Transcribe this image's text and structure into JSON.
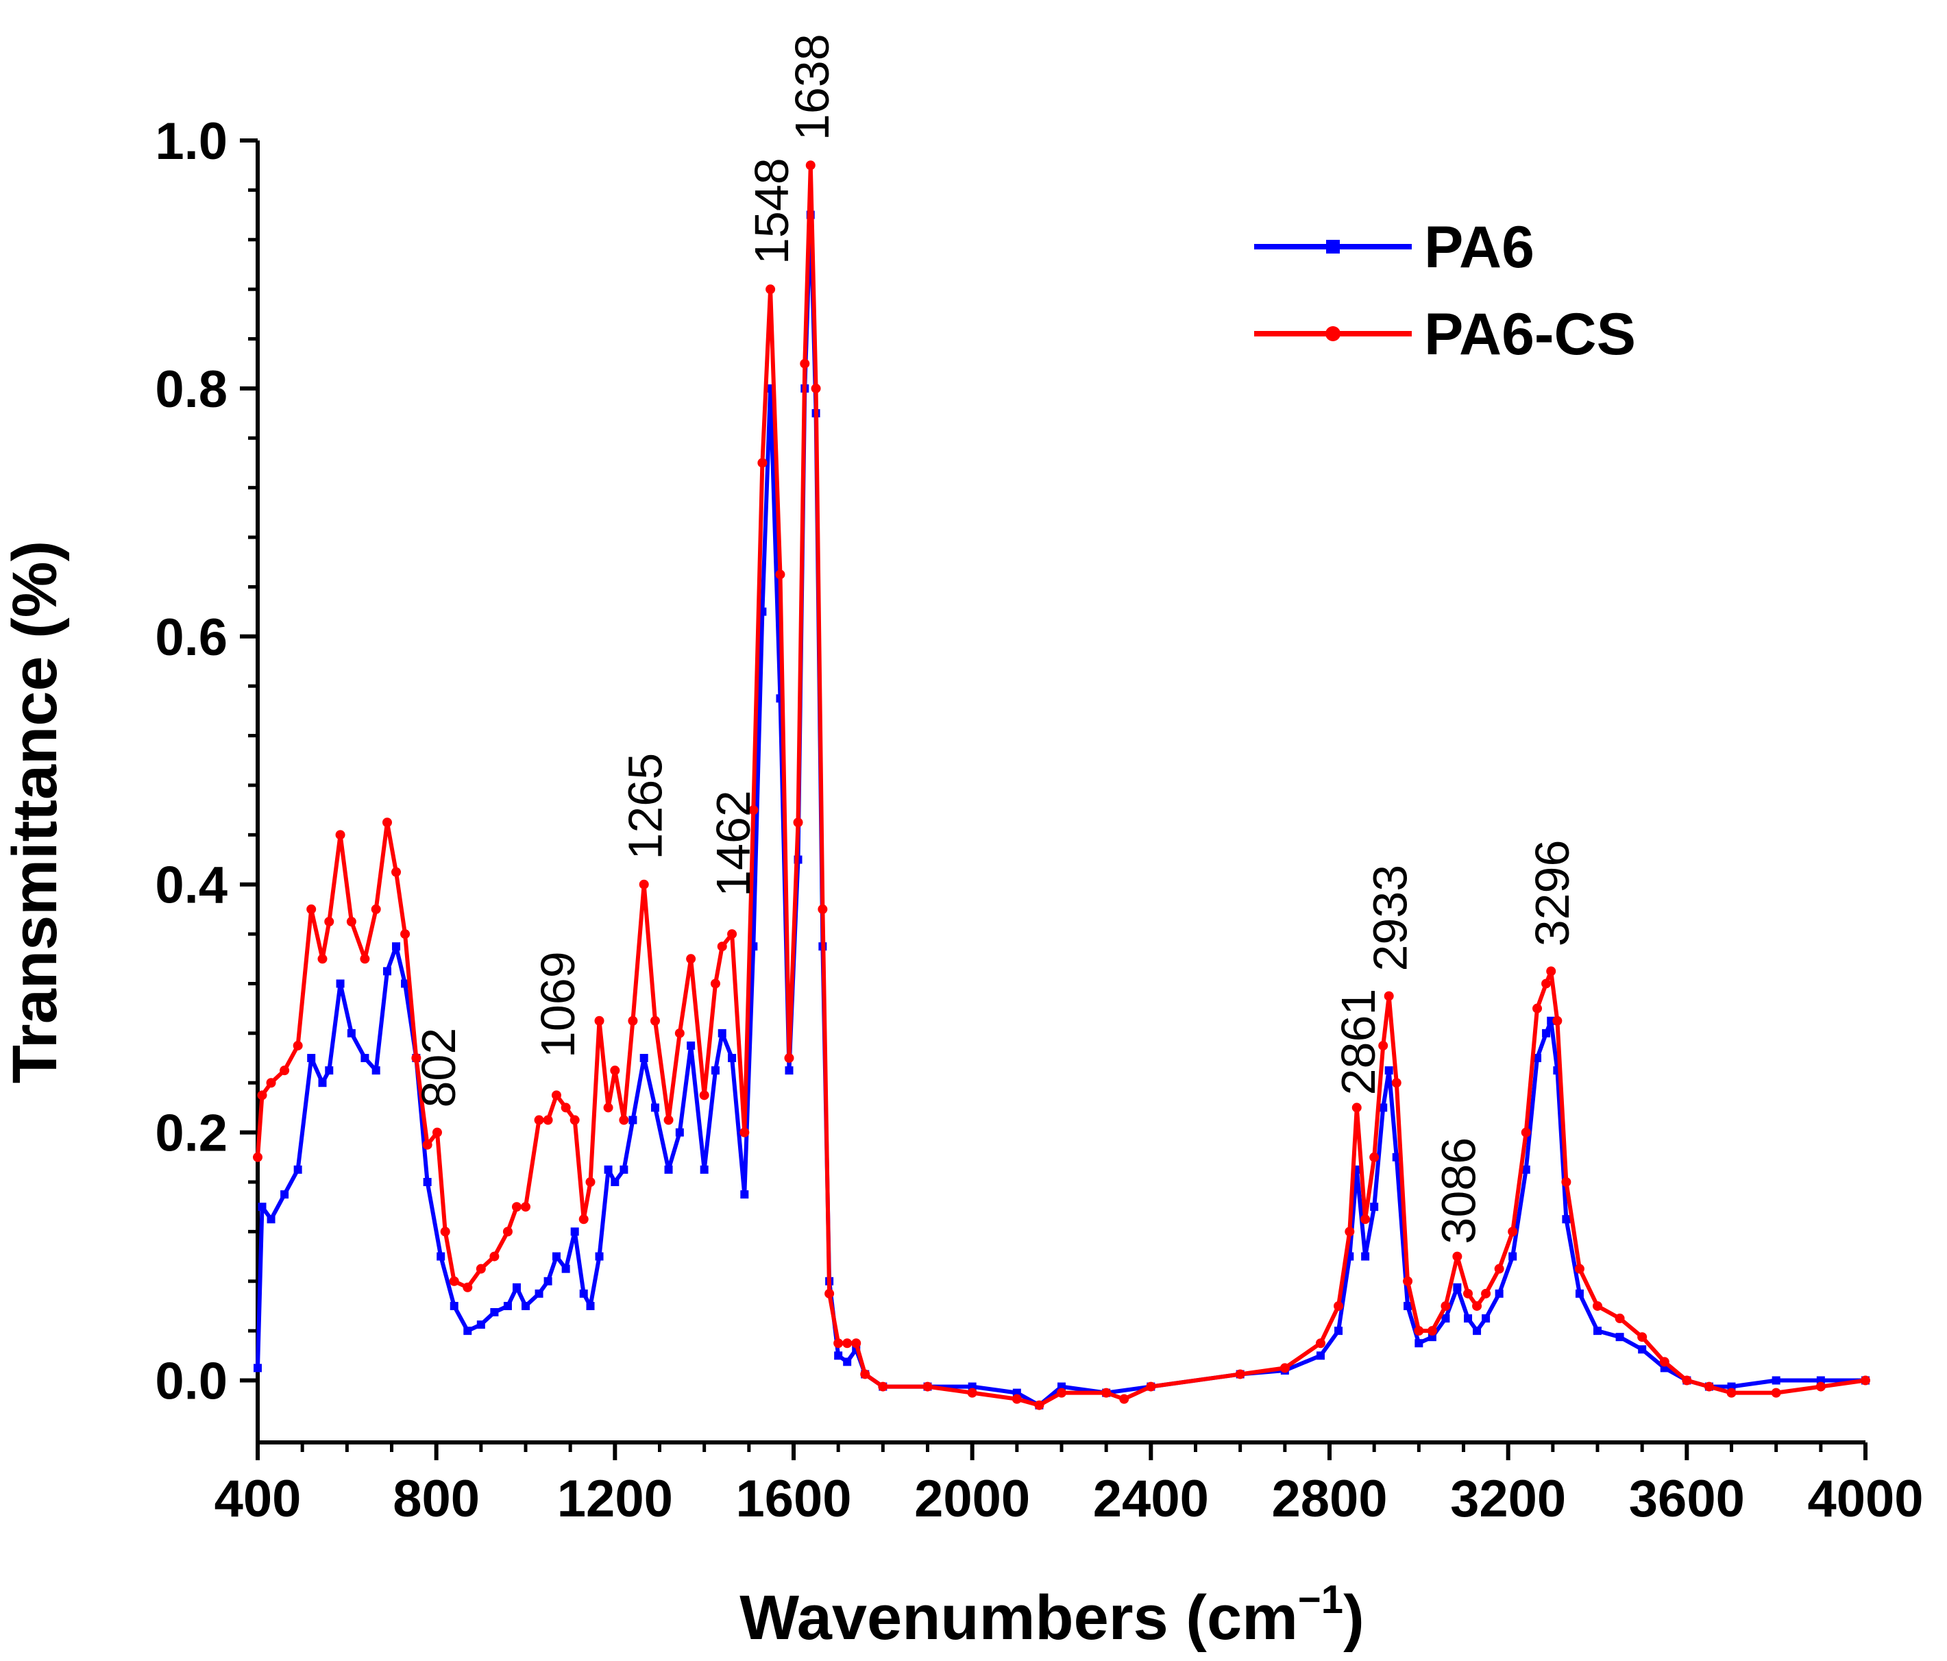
{
  "chart_data": {
    "type": "line",
    "title": "",
    "xlabel": "Wavenumbers (cm",
    "xlabel_sup": "−1",
    "xlabel_end": ")",
    "ylabel": "Transmittance (%)",
    "xlim": [
      400,
      4000
    ],
    "ylim": [
      -0.05,
      1.0
    ],
    "xticks": [
      400,
      800,
      1200,
      1600,
      2000,
      2400,
      2800,
      3200,
      3600,
      4000
    ],
    "yticks": [
      0.0,
      0.2,
      0.4,
      0.6,
      0.8,
      1.0
    ],
    "ytick_labels": [
      "0.0",
      "0.2",
      "0.4",
      "0.6",
      "0.8",
      "1.0"
    ],
    "legend_position": "top-right",
    "series": [
      {
        "name": "PA6",
        "color": "#0000ff",
        "marker": "square",
        "x": [
          400,
          410,
          430,
          460,
          490,
          520,
          545,
          560,
          585,
          610,
          640,
          665,
          690,
          710,
          730,
          755,
          780,
          810,
          840,
          870,
          900,
          930,
          960,
          980,
          1000,
          1030,
          1050,
          1069,
          1090,
          1110,
          1130,
          1145,
          1165,
          1185,
          1200,
          1220,
          1240,
          1265,
          1290,
          1320,
          1345,
          1370,
          1400,
          1425,
          1440,
          1462,
          1490,
          1510,
          1530,
          1548,
          1570,
          1590,
          1610,
          1625,
          1638,
          1650,
          1665,
          1680,
          1700,
          1720,
          1740,
          1760,
          1800,
          1900,
          2000,
          2100,
          2150,
          2200,
          2300,
          2400,
          2600,
          2700,
          2780,
          2820,
          2845,
          2861,
          2880,
          2900,
          2920,
          2933,
          2950,
          2975,
          3000,
          3030,
          3060,
          3086,
          3110,
          3130,
          3150,
          3180,
          3210,
          3240,
          3265,
          3285,
          3296,
          3310,
          3330,
          3360,
          3400,
          3450,
          3500,
          3550,
          3600,
          3650,
          3700,
          3800,
          3900,
          4000
        ],
        "y": [
          0.01,
          0.14,
          0.13,
          0.15,
          0.17,
          0.26,
          0.24,
          0.25,
          0.32,
          0.28,
          0.26,
          0.25,
          0.33,
          0.35,
          0.32,
          0.26,
          0.16,
          0.1,
          0.06,
          0.04,
          0.045,
          0.055,
          0.06,
          0.075,
          0.06,
          0.07,
          0.08,
          0.1,
          0.09,
          0.12,
          0.07,
          0.06,
          0.1,
          0.17,
          0.16,
          0.17,
          0.21,
          0.26,
          0.22,
          0.17,
          0.2,
          0.27,
          0.17,
          0.25,
          0.28,
          0.26,
          0.15,
          0.35,
          0.62,
          0.8,
          0.55,
          0.25,
          0.42,
          0.8,
          0.94,
          0.78,
          0.35,
          0.08,
          0.02,
          0.015,
          0.025,
          0.005,
          -0.005,
          -0.005,
          -0.005,
          -0.01,
          -0.02,
          -0.005,
          -0.01,
          -0.005,
          0.005,
          0.008,
          0.02,
          0.04,
          0.1,
          0.17,
          0.1,
          0.14,
          0.22,
          0.25,
          0.18,
          0.06,
          0.03,
          0.035,
          0.05,
          0.075,
          0.05,
          0.04,
          0.05,
          0.07,
          0.1,
          0.17,
          0.26,
          0.28,
          0.29,
          0.25,
          0.13,
          0.07,
          0.04,
          0.035,
          0.025,
          0.01,
          0.0,
          -0.005,
          -0.005,
          0.0,
          0.0,
          0.0
        ]
      },
      {
        "name": "PA6-CS",
        "color": "#ff0000",
        "marker": "circle",
        "x": [
          400,
          410,
          430,
          460,
          490,
          520,
          545,
          560,
          585,
          610,
          640,
          665,
          690,
          710,
          730,
          755,
          780,
          802,
          820,
          840,
          870,
          900,
          930,
          960,
          980,
          1000,
          1030,
          1050,
          1069,
          1090,
          1110,
          1130,
          1145,
          1165,
          1185,
          1200,
          1220,
          1240,
          1265,
          1290,
          1320,
          1345,
          1370,
          1400,
          1425,
          1440,
          1462,
          1490,
          1510,
          1530,
          1548,
          1570,
          1590,
          1610,
          1625,
          1638,
          1650,
          1665,
          1680,
          1700,
          1720,
          1740,
          1760,
          1800,
          1900,
          2000,
          2100,
          2150,
          2200,
          2300,
          2340,
          2400,
          2600,
          2700,
          2780,
          2820,
          2845,
          2861,
          2880,
          2900,
          2920,
          2933,
          2950,
          2975,
          3000,
          3030,
          3060,
          3086,
          3110,
          3130,
          3150,
          3180,
          3210,
          3240,
          3265,
          3285,
          3296,
          3310,
          3330,
          3360,
          3400,
          3450,
          3500,
          3550,
          3600,
          3650,
          3700,
          3800,
          3900,
          4000
        ],
        "y": [
          0.18,
          0.23,
          0.24,
          0.25,
          0.27,
          0.38,
          0.34,
          0.37,
          0.44,
          0.37,
          0.34,
          0.38,
          0.45,
          0.41,
          0.36,
          0.26,
          0.19,
          0.2,
          0.12,
          0.08,
          0.075,
          0.09,
          0.1,
          0.12,
          0.14,
          0.14,
          0.21,
          0.21,
          0.23,
          0.22,
          0.21,
          0.13,
          0.16,
          0.29,
          0.22,
          0.25,
          0.21,
          0.29,
          0.4,
          0.29,
          0.21,
          0.28,
          0.34,
          0.23,
          0.32,
          0.35,
          0.36,
          0.2,
          0.46,
          0.74,
          0.88,
          0.65,
          0.26,
          0.45,
          0.82,
          0.98,
          0.8,
          0.38,
          0.07,
          0.03,
          0.03,
          0.03,
          0.005,
          -0.005,
          -0.005,
          -0.01,
          -0.015,
          -0.02,
          -0.01,
          -0.01,
          -0.015,
          -0.005,
          0.005,
          0.01,
          0.03,
          0.06,
          0.12,
          0.22,
          0.13,
          0.18,
          0.27,
          0.31,
          0.24,
          0.08,
          0.04,
          0.04,
          0.06,
          0.1,
          0.07,
          0.06,
          0.07,
          0.09,
          0.12,
          0.2,
          0.3,
          0.32,
          0.33,
          0.29,
          0.16,
          0.09,
          0.06,
          0.05,
          0.035,
          0.015,
          0.0,
          -0.005,
          -0.01,
          -0.01,
          -0.005,
          0.0
        ]
      }
    ],
    "annotations": [
      {
        "text": "802",
        "x": 802,
        "y": 0.21
      },
      {
        "text": "1069",
        "x": 1069,
        "y": 0.25
      },
      {
        "text": "1265",
        "x": 1265,
        "y": 0.41
      },
      {
        "text": "1462",
        "x": 1462,
        "y": 0.38
      },
      {
        "text": "1548",
        "x": 1548,
        "y": 0.89
      },
      {
        "text": "1638",
        "x": 1638,
        "y": 0.99
      },
      {
        "text": "2861",
        "x": 2861,
        "y": 0.22
      },
      {
        "text": "2933",
        "x": 2933,
        "y": 0.32
      },
      {
        "text": "3086",
        "x": 3086,
        "y": 0.1
      },
      {
        "text": "3296",
        "x": 3296,
        "y": 0.34
      }
    ]
  }
}
